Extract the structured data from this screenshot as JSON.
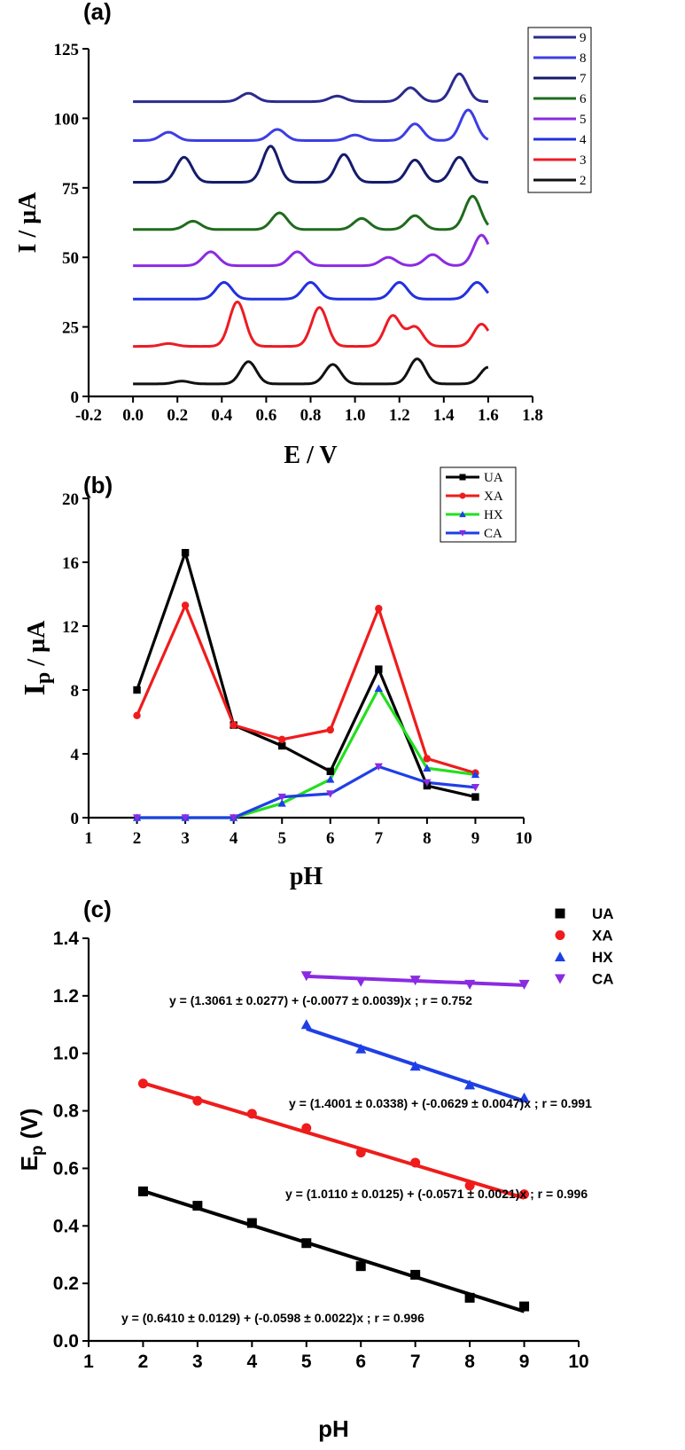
{
  "chart_data": [
    {
      "panel": "(a)",
      "type": "line",
      "xlabel": "E / V",
      "ylabel": "I / µA",
      "xlim": [
        -0.2,
        1.8
      ],
      "ylim": [
        0,
        125
      ],
      "x_ticks": [
        "-0.2",
        "0.0",
        "0.2",
        "0.4",
        "0.6",
        "0.8",
        "1.0",
        "1.2",
        "1.4",
        "1.6",
        "1.8"
      ],
      "y_ticks": [
        "0",
        "25",
        "50",
        "75",
        "100",
        "125"
      ],
      "legend_position": "top-right",
      "series": [
        {
          "name": "9",
          "color": "#2b2a8f",
          "baseline": 106,
          "peaks": [
            [
              0.52,
              3
            ],
            [
              0.92,
              2
            ],
            [
              1.25,
              5
            ],
            [
              1.47,
              10
            ]
          ]
        },
        {
          "name": "8",
          "color": "#3d3ee3",
          "baseline": 92,
          "peaks": [
            [
              0.16,
              3
            ],
            [
              0.65,
              4
            ],
            [
              1.0,
              2
            ],
            [
              1.27,
              6
            ],
            [
              1.51,
              11
            ]
          ]
        },
        {
          "name": "7",
          "color": "#151b6b",
          "baseline": 77,
          "peaks": [
            [
              0.23,
              9
            ],
            [
              0.62,
              13
            ],
            [
              0.95,
              10
            ],
            [
              1.27,
              8
            ],
            [
              1.47,
              9
            ]
          ]
        },
        {
          "name": "6",
          "color": "#1f6b1d",
          "baseline": 60,
          "peaks": [
            [
              0.27,
              3
            ],
            [
              0.66,
              6
            ],
            [
              1.03,
              4
            ],
            [
              1.27,
              5
            ],
            [
              1.53,
              12
            ]
          ]
        },
        {
          "name": "5",
          "color": "#8a2be2",
          "baseline": 47,
          "peaks": [
            [
              0.35,
              5
            ],
            [
              0.74,
              5
            ],
            [
              1.15,
              3
            ],
            [
              1.35,
              4
            ],
            [
              1.57,
              11
            ]
          ]
        },
        {
          "name": "4",
          "color": "#2230e0",
          "baseline": 35,
          "peaks": [
            [
              0.41,
              6
            ],
            [
              0.8,
              6
            ],
            [
              1.2,
              6
            ],
            [
              1.55,
              6
            ]
          ]
        },
        {
          "name": "3",
          "color": "#ec1c24",
          "baseline": 18,
          "peaks": [
            [
              0.16,
              1
            ],
            [
              0.47,
              16
            ],
            [
              0.84,
              14
            ],
            [
              1.17,
              11
            ],
            [
              1.27,
              7
            ],
            [
              1.57,
              8
            ]
          ]
        },
        {
          "name": "2",
          "color": "#111111",
          "baseline": 4.5,
          "peaks": [
            [
              0.22,
              1
            ],
            [
              0.52,
              8
            ],
            [
              0.9,
              7
            ],
            [
              1.28,
              9
            ],
            [
              1.6,
              6
            ]
          ]
        }
      ]
    },
    {
      "panel": "(b)",
      "type": "line",
      "xlabel": "pH",
      "ylabel": "I",
      "ylabel_sub": "p",
      "ylabel_unit": " / µA",
      "xlim": [
        1,
        10
      ],
      "ylim": [
        0,
        20
      ],
      "x_ticks": [
        "1",
        "2",
        "3",
        "4",
        "5",
        "6",
        "7",
        "8",
        "9",
        "10"
      ],
      "y_ticks": [
        "0",
        "4",
        "8",
        "12",
        "16",
        "20"
      ],
      "legend_position": "top-right",
      "x": [
        2,
        3,
        4,
        5,
        6,
        7,
        8,
        9
      ],
      "series": [
        {
          "name": "UA",
          "color": "#000000",
          "marker": "square",
          "values": [
            8.0,
            16.6,
            5.8,
            4.5,
            2.9,
            9.3,
            2.0,
            1.3
          ]
        },
        {
          "name": "XA",
          "color": "#ee1c1c",
          "marker": "circle",
          "values": [
            6.4,
            13.3,
            5.8,
            4.9,
            5.5,
            13.1,
            3.7,
            2.8
          ]
        },
        {
          "name": "HX",
          "color": "#22e01e",
          "marker": "triangle-up",
          "markerColor": "#1f3fe6",
          "values": [
            0,
            0,
            0,
            0.9,
            2.4,
            8.1,
            3.1,
            2.7
          ]
        },
        {
          "name": "CA",
          "color": "#1f3fe6",
          "marker": "triangle-down",
          "markerColor": "#8a2be2",
          "values": [
            0,
            0,
            0,
            1.3,
            1.5,
            3.2,
            2.2,
            1.9
          ]
        }
      ]
    },
    {
      "panel": "(c)",
      "type": "scatter",
      "xlabel": "pH",
      "ylabel": "E",
      "ylabel_sub": "p",
      "ylabel_unit": " (V)",
      "xlim": [
        1,
        10
      ],
      "ylim": [
        0,
        1.4
      ],
      "x_ticks": [
        "1",
        "2",
        "3",
        "4",
        "5",
        "6",
        "7",
        "8",
        "9",
        "10"
      ],
      "y_ticks": [
        "0.0",
        "0.2",
        "0.4",
        "0.6",
        "0.8",
        "1.0",
        "1.2",
        "1.4"
      ],
      "legend_position": "top-right",
      "series": [
        {
          "name": "UA",
          "color": "#000000",
          "marker": "square",
          "x": [
            2,
            3,
            4,
            5,
            6,
            7,
            8,
            9
          ],
          "values": [
            0.52,
            0.47,
            0.41,
            0.34,
            0.26,
            0.23,
            0.15,
            0.12
          ],
          "fit": {
            "intercept": 0.641,
            "slope": -0.0598
          },
          "equation": "y = (0.6410 ± 0.0129) + (-0.0598 ± 0.0022)x ; r = 0.996"
        },
        {
          "name": "XA",
          "color": "#ee1c1c",
          "marker": "circle",
          "x": [
            2,
            3,
            4,
            5,
            6,
            7,
            8,
            9
          ],
          "values": [
            0.895,
            0.835,
            0.79,
            0.74,
            0.655,
            0.62,
            0.54,
            0.51
          ],
          "fit": {
            "intercept": 1.011,
            "slope": -0.0571
          },
          "equation": "y = (1.0110 ± 0.0125) + (-0.0571 ± 0.0021)x ; r = 0.996"
        },
        {
          "name": "HX",
          "color": "#1f3fe6",
          "marker": "triangle-up",
          "x": [
            5,
            6,
            7,
            8,
            9
          ],
          "values": [
            1.1,
            1.015,
            0.955,
            0.89,
            0.845
          ],
          "fit": {
            "intercept": 1.4001,
            "slope": -0.0629
          },
          "equation": "y = (1.4001 ± 0.0338) + (-0.0629 ± 0.0047)x ; r = 0.991"
        },
        {
          "name": "CA",
          "color": "#8a2be2",
          "marker": "triangle-down",
          "x": [
            5,
            6,
            7,
            8,
            9
          ],
          "values": [
            1.27,
            1.25,
            1.255,
            1.24,
            1.24
          ],
          "fit": {
            "intercept": 1.3061,
            "slope": -0.0077
          },
          "equation": "y = (1.3061 ± 0.0277) + (-0.0077 ± 0.0039)x ; r = 0.752"
        }
      ]
    }
  ]
}
